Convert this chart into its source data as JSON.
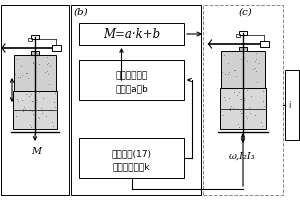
{
  "bg_color": "#ffffff",
  "border_color": "#000000",
  "text_color": "#000000",
  "fig_width": 3.0,
  "fig_height": 2.0,
  "panel_b_label": "(b)",
  "panel_c_label": "(c)",
  "formula": "M=a·k+b",
  "box1_line1": "最小二乘法计",
  "box1_line2": "算系数a和b",
  "box2_line1": "根据公式(17)",
  "box2_line2": "计算接触刚度k",
  "bottom_label_a": "M",
  "bottom_label_c": "ω,I₂I₃",
  "partial_label": "i"
}
